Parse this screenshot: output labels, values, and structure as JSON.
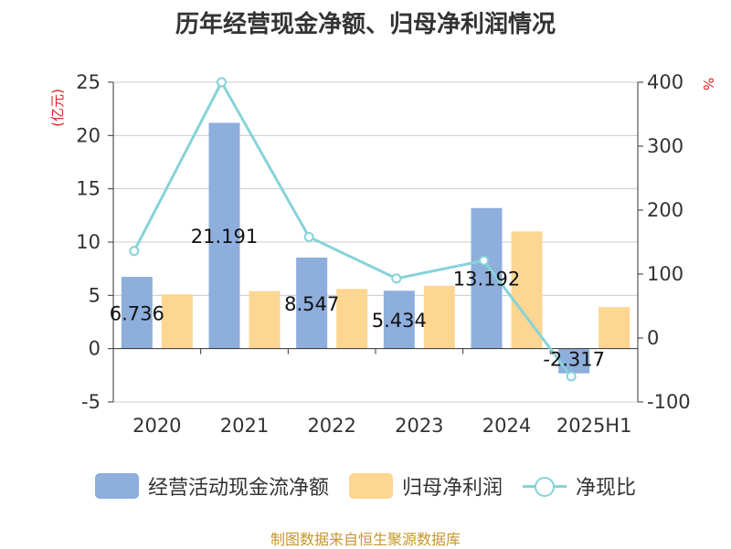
{
  "chart_data": {
    "type": "bar",
    "title": "历年经营现金净额、归母净利润情况",
    "categories": [
      "2020",
      "2021",
      "2022",
      "2023",
      "2024",
      "2025H1"
    ],
    "series": [
      {
        "name": "经营活动现金流净额",
        "type": "bar",
        "axis": "left",
        "color": "#8eaedc",
        "values": [
          6.736,
          21.191,
          8.547,
          5.434,
          13.192,
          -2.317
        ]
      },
      {
        "name": "归母净利润",
        "type": "bar",
        "axis": "left",
        "color": "#fdd692",
        "values": [
          5.1,
          5.4,
          5.6,
          5.9,
          11.0,
          3.9
        ]
      },
      {
        "name": "净现比",
        "type": "line",
        "axis": "right",
        "color": "#86d3d8",
        "values": [
          136,
          400,
          158,
          93,
          121,
          -60
        ]
      }
    ],
    "data_labels": [
      "6.736",
      "21.191",
      "8.547",
      "5.434",
      "13.192",
      "-2.317"
    ],
    "left_axis": {
      "unit": "(亿元)",
      "ylim": [
        -5,
        25
      ],
      "ticks": [
        -5,
        0,
        5,
        10,
        15,
        20,
        25
      ]
    },
    "right_axis": {
      "unit": "%",
      "ylim": [
        -100,
        400
      ],
      "ticks": [
        -100,
        0,
        100,
        200,
        300,
        400
      ]
    },
    "grid": true,
    "legend_position": "bottom"
  },
  "source": "制图数据来自恒生聚源数据库"
}
